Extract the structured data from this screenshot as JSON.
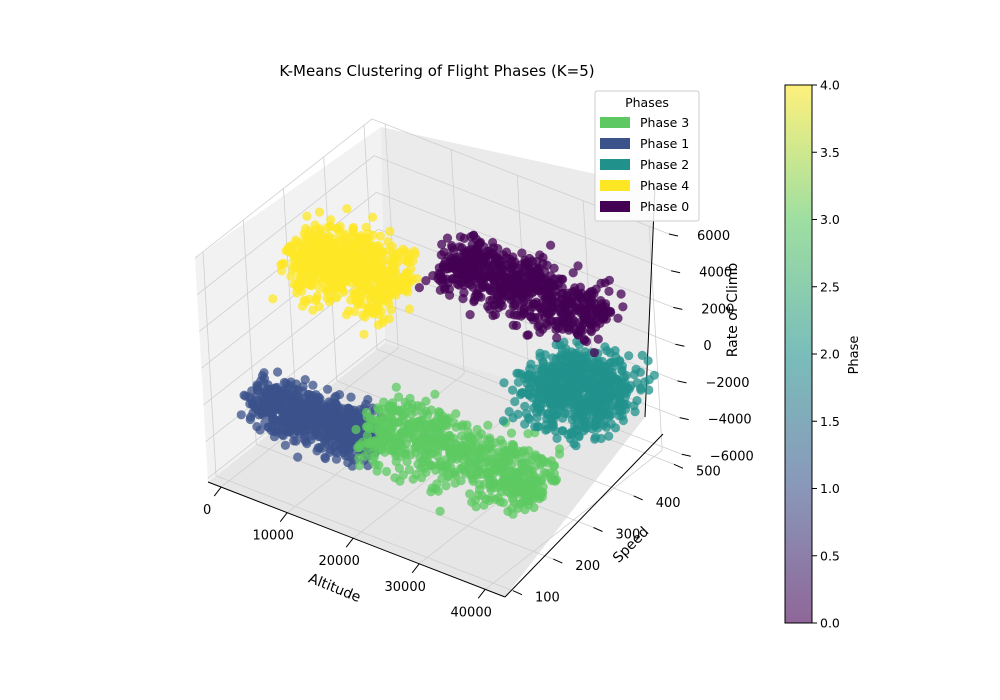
{
  "chart_data": {
    "type": "scatter",
    "projection": "3d",
    "title": "K-Means Clustering of Flight Phases (K=5)",
    "xlabel": "Altitude",
    "ylabel": "Speed",
    "zlabel": "Rate of Climb",
    "xlim": [
      -2000,
      43000
    ],
    "ylim": [
      80,
      520
    ],
    "zlim": [
      -6200,
      6000
    ],
    "x_ticks": [
      0,
      10000,
      20000,
      30000,
      40000
    ],
    "y_ticks": [
      100,
      200,
      300,
      400,
      500
    ],
    "z_ticks": [
      -6000,
      -4000,
      -2000,
      0,
      2000,
      4000,
      6000
    ],
    "x_tick_labels": [
      "0",
      "10000",
      "20000",
      "30000",
      "40000"
    ],
    "y_tick_labels": [
      "100",
      "200",
      "300",
      "400",
      "500"
    ],
    "z_tick_labels": [
      "−6000",
      "−4000",
      "−2000",
      "0",
      "2000",
      "4000",
      "6000"
    ],
    "grid": true,
    "legend": {
      "title": "Phases",
      "position": "upper right",
      "entries": [
        {
          "label": "Phase 3",
          "color": "#5ec962"
        },
        {
          "label": "Phase 1",
          "color": "#3b528b"
        },
        {
          "label": "Phase 2",
          "color": "#21918c"
        },
        {
          "label": "Phase 4",
          "color": "#fde725"
        },
        {
          "label": "Phase 0",
          "color": "#440154"
        }
      ]
    },
    "colorbar": {
      "label": "Phase",
      "min": 0,
      "max": 4,
      "ticks": [
        "0.0",
        "0.5",
        "1.0",
        "1.5",
        "2.0",
        "2.5",
        "3.0",
        "3.5",
        "4.0"
      ]
    },
    "clusters": [
      {
        "phase": 4,
        "color": "#fde725",
        "x": [
          0,
          15000
        ],
        "y": [
          200,
          420
        ],
        "z": [
          500,
          5500
        ],
        "center": [
          7000,
          300,
          3000
        ]
      },
      {
        "phase": 1,
        "color": "#3b528b",
        "x": [
          0,
          17000
        ],
        "y": [
          120,
          260
        ],
        "z": [
          -5000,
          -1000
        ],
        "center": [
          7000,
          180,
          -3000
        ]
      },
      {
        "phase": 0,
        "color": "#440154",
        "x": [
          16000,
          40000
        ],
        "y": [
          300,
          480
        ],
        "z": [
          1000,
          5000
        ],
        "center": [
          28000,
          400,
          3000
        ]
      },
      {
        "phase": 3,
        "color": "#5ec962",
        "x": [
          12000,
          38000
        ],
        "y": [
          150,
          380
        ],
        "z": [
          -6000,
          -2000
        ],
        "center": [
          24000,
          260,
          -4000
        ]
      },
      {
        "phase": 2,
        "color": "#21918c",
        "x": [
          30000,
          42000
        ],
        "y": [
          250,
          520
        ],
        "z": [
          -3500,
          1000
        ],
        "center": [
          37000,
          390,
          -1200
        ]
      }
    ]
  }
}
